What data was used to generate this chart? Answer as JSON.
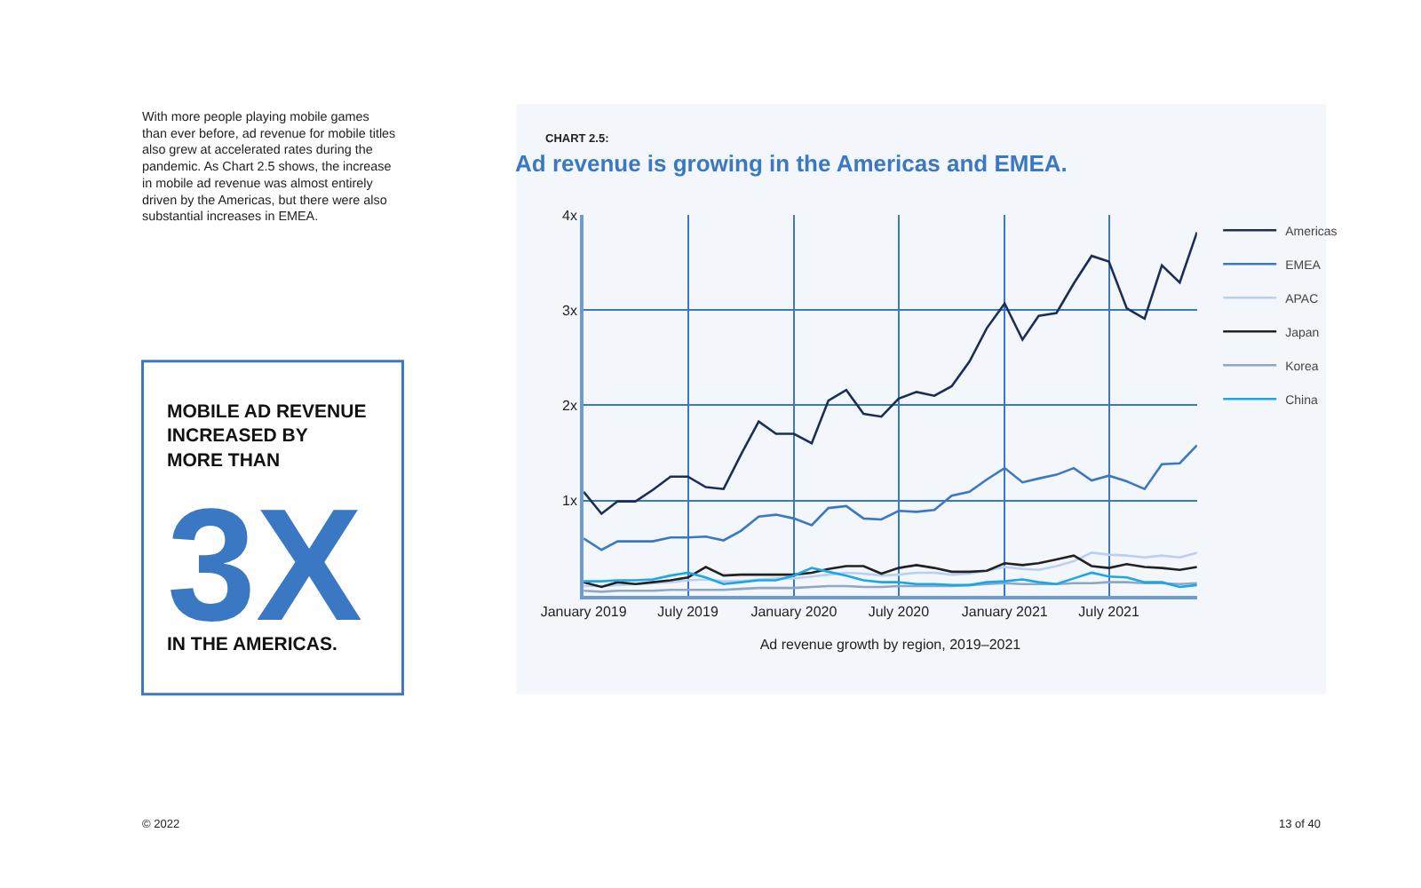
{
  "chart_data": {
    "type": "line",
    "subtitle": "CHART 2.5:",
    "title": "Ad revenue is growing in the Americas and EMEA.",
    "xlabel": "Ad revenue growth by region, 2019–2021",
    "x": [
      "2019-01",
      "2019-02",
      "2019-03",
      "2019-04",
      "2019-05",
      "2019-06",
      "2019-07",
      "2019-08",
      "2019-09",
      "2019-10",
      "2019-11",
      "2019-12",
      "2020-01",
      "2020-02",
      "2020-03",
      "2020-04",
      "2020-05",
      "2020-06",
      "2020-07",
      "2020-08",
      "2020-09",
      "2020-10",
      "2020-11",
      "2020-12",
      "2021-01",
      "2021-02",
      "2021-03",
      "2021-04",
      "2021-05",
      "2021-06",
      "2021-07",
      "2021-08",
      "2021-09",
      "2021-10",
      "2021-11",
      "2021-12"
    ],
    "series": [
      {
        "name": "Americas",
        "color": "#1b2f55",
        "values": [
          1.09,
          0.86,
          0.99,
          0.99,
          1.11,
          1.25,
          1.25,
          1.14,
          1.12,
          1.48,
          1.83,
          1.7,
          1.7,
          1.6,
          2.05,
          2.16,
          1.91,
          1.88,
          2.07,
          2.14,
          2.1,
          2.2,
          2.46,
          2.81,
          3.07,
          2.69,
          2.94,
          2.97,
          3.28,
          3.57,
          3.51,
          3.02,
          2.91,
          3.47,
          3.29,
          3.82
        ]
      },
      {
        "name": "EMEA",
        "color": "#3b78c3",
        "values": [
          0.6,
          0.48,
          0.57,
          0.57,
          0.57,
          0.61,
          0.61,
          0.62,
          0.58,
          0.68,
          0.83,
          0.85,
          0.81,
          0.74,
          0.92,
          0.94,
          0.81,
          0.8,
          0.89,
          0.88,
          0.9,
          1.05,
          1.09,
          1.22,
          1.34,
          1.19,
          1.23,
          1.27,
          1.34,
          1.21,
          1.26,
          1.2,
          1.12,
          1.38,
          1.39,
          1.58
        ]
      },
      {
        "name": "APAC",
        "color": "#b9d0f0",
        "values": [
          0.1,
          0.1,
          0.11,
          0.12,
          0.13,
          0.14,
          0.16,
          0.17,
          0.15,
          0.15,
          0.17,
          0.18,
          0.18,
          0.2,
          0.22,
          0.24,
          0.23,
          0.21,
          0.22,
          0.24,
          0.24,
          0.22,
          0.23,
          0.26,
          0.3,
          0.28,
          0.27,
          0.31,
          0.36,
          0.45,
          0.43,
          0.42,
          0.4,
          0.42,
          0.4,
          0.45
        ]
      },
      {
        "name": "Japan",
        "color": "#222222",
        "values": [
          0.14,
          0.09,
          0.14,
          0.12,
          0.14,
          0.16,
          0.19,
          0.3,
          0.21,
          0.22,
          0.22,
          0.22,
          0.22,
          0.24,
          0.28,
          0.31,
          0.31,
          0.23,
          0.29,
          0.32,
          0.29,
          0.25,
          0.25,
          0.26,
          0.34,
          0.32,
          0.34,
          0.38,
          0.42,
          0.31,
          0.29,
          0.33,
          0.3,
          0.29,
          0.27,
          0.3
        ]
      },
      {
        "name": "Korea",
        "color": "#8fa6c4",
        "values": [
          0.05,
          0.04,
          0.05,
          0.05,
          0.05,
          0.06,
          0.06,
          0.06,
          0.06,
          0.07,
          0.08,
          0.08,
          0.08,
          0.09,
          0.1,
          0.1,
          0.09,
          0.09,
          0.1,
          0.1,
          0.1,
          0.1,
          0.11,
          0.12,
          0.13,
          0.12,
          0.12,
          0.12,
          0.13,
          0.13,
          0.14,
          0.14,
          0.13,
          0.13,
          0.12,
          0.13
        ]
      },
      {
        "name": "China",
        "color": "#1aa7e8",
        "values": [
          0.15,
          0.15,
          0.16,
          0.16,
          0.17,
          0.21,
          0.24,
          0.19,
          0.12,
          0.14,
          0.16,
          0.16,
          0.21,
          0.29,
          0.25,
          0.21,
          0.16,
          0.14,
          0.14,
          0.12,
          0.12,
          0.11,
          0.11,
          0.14,
          0.15,
          0.17,
          0.14,
          0.12,
          0.18,
          0.24,
          0.2,
          0.19,
          0.14,
          0.14,
          0.09,
          0.11
        ]
      }
    ],
    "xlim": [
      "2019-01",
      "2021-12"
    ],
    "xticks": [
      {
        "value": "2019-01",
        "label": "January 2019"
      },
      {
        "value": "2019-07",
        "label": "July 2019"
      },
      {
        "value": "2020-01",
        "label": "January 2020"
      },
      {
        "value": "2020-07",
        "label": "July 2020"
      },
      {
        "value": "2021-01",
        "label": "January 2021"
      },
      {
        "value": "2021-07",
        "label": "July 2021"
      }
    ],
    "ylim": [
      0,
      4
    ],
    "yticks": [
      {
        "value": 1,
        "label": "1x"
      },
      {
        "value": 2,
        "label": "2x"
      },
      {
        "value": 3,
        "label": "3x"
      },
      {
        "value": 4,
        "label": "4x"
      }
    ],
    "grid": true,
    "legend": "top right",
    "marker": "none",
    "line_style": "solid",
    "annotations": [
      "With more people playing mobile games\nthan ever before, ad revenue for mobile titles\nalso grew at accelerated rates during the\npandemic. As Chart 2.5 shows, the increase\nin mobile ad revenue was almost entirely\ndriven by the Americas, but there were also\nsubstantial increases in EMEA.",
      "MOBILE AD REVENUE\nINCREASED BY\nMORE THAN",
      "3X",
      "IN THE AMERICAS.",
      "© 2022",
      "13 of 40"
    ]
  }
}
